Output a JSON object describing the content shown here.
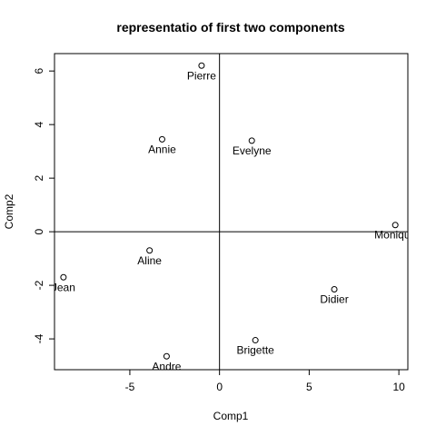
{
  "chart_data": {
    "type": "scatter",
    "title": "representatio of first two components",
    "xlabel": "Comp1",
    "ylabel": "Comp2",
    "xlim": [
      -9.2,
      10.5
    ],
    "ylim": [
      -5.15,
      6.65
    ],
    "xticks": [
      -5,
      0,
      5,
      10
    ],
    "yticks": [
      -4,
      -2,
      0,
      2,
      4,
      6
    ],
    "reference_lines": {
      "x": 0,
      "y": 0
    },
    "grid": false,
    "points": [
      {
        "label": "Pierre",
        "x": -1.0,
        "y": 6.2
      },
      {
        "label": "Annie",
        "x": -3.2,
        "y": 3.45
      },
      {
        "label": "Evelyne",
        "x": 1.8,
        "y": 3.4
      },
      {
        "label": "Monique",
        "x": 9.8,
        "y": 0.25
      },
      {
        "label": "Aline",
        "x": -3.9,
        "y": -0.7
      },
      {
        "label": "Jean",
        "x": -8.7,
        "y": -1.7
      },
      {
        "label": "Didier",
        "x": 6.4,
        "y": -2.15
      },
      {
        "label": "Brigette",
        "x": 2.0,
        "y": -4.05
      },
      {
        "label": "Andre",
        "x": -2.95,
        "y": -4.65
      }
    ]
  }
}
